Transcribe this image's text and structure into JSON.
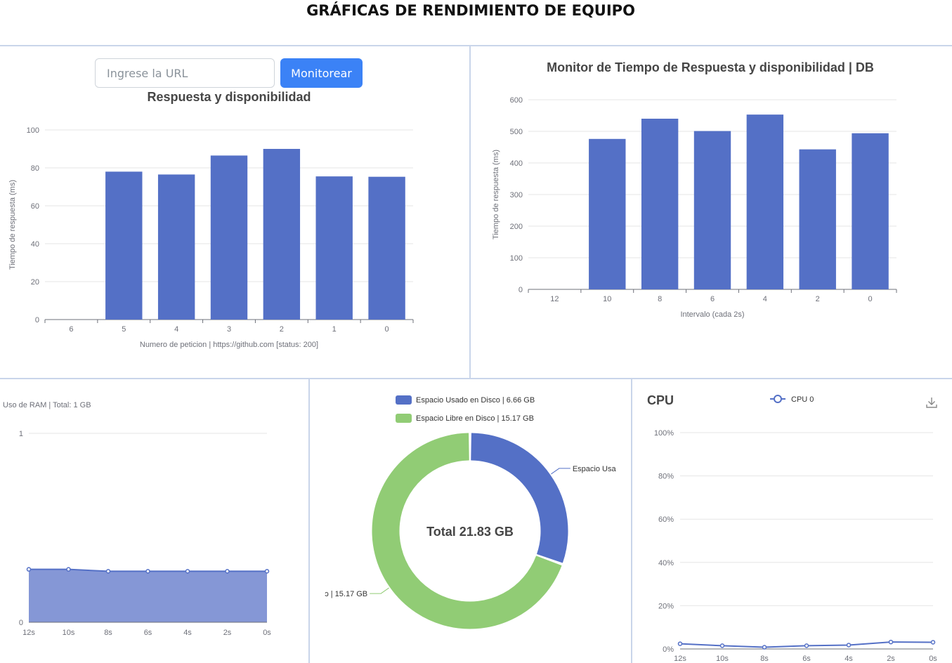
{
  "page": {
    "title": "GRÁFICAS DE RENDIMIENTO DE EQUIPO"
  },
  "monitor": {
    "url_placeholder": "Ingrese la URL",
    "url_value": "",
    "button_label": "Monitorear"
  },
  "colors": {
    "bar": "#5470c6",
    "green": "#91cc75",
    "button": "#3b82f6"
  },
  "response_chart": {
    "chart_data": {
      "type": "bar",
      "title": "Respuesta y disponibilidad",
      "xlabel": "Numero de peticion | https://github.com [status: 200]",
      "ylabel": "Tiempo de respuesta (ms)",
      "categories": [
        "6",
        "5",
        "4",
        "3",
        "2",
        "1",
        "0"
      ],
      "values": [
        null,
        78,
        76.5,
        86.5,
        90,
        75.5,
        75.3
      ],
      "ylim": [
        0,
        100
      ],
      "yticks": [
        "0",
        "20",
        "40",
        "60",
        "80",
        "100"
      ],
      "grid": true
    }
  },
  "db_chart": {
    "chart_data": {
      "type": "bar",
      "title": "Monitor de Tiempo de Respuesta y disponibilidad | DB",
      "xlabel": "Intervalo (cada 2s)",
      "ylabel": "Tiempo de respuesta (ms)",
      "categories": [
        "12",
        "10",
        "8",
        "6",
        "4",
        "2",
        "0"
      ],
      "values": [
        null,
        476,
        540,
        501,
        553,
        443,
        494
      ],
      "ylim": [
        0,
        600
      ],
      "yticks": [
        "0",
        "100",
        "200",
        "300",
        "400",
        "500",
        "600"
      ],
      "grid": true
    }
  },
  "ram_chart": {
    "chart_data": {
      "type": "area",
      "title": "Uso de RAM | Total: 1 GB",
      "categories": [
        "12s",
        "10s",
        "8s",
        "6s",
        "4s",
        "2s",
        "0s"
      ],
      "values": [
        0.28,
        0.28,
        0.27,
        0.27,
        0.27,
        0.27,
        0.27
      ],
      "ylim": [
        0,
        1
      ],
      "yticks": [
        "0",
        "1"
      ],
      "grid": true
    }
  },
  "disk_chart": {
    "chart_data": {
      "type": "pie",
      "center_label": "Total 21.83 GB",
      "slices": [
        {
          "name": "Espacio Usado en Disco | 6.66 GB",
          "value": 6.66,
          "color": "#5470c6",
          "outer_label": "Espacio Usa"
        },
        {
          "name": "Espacio Libre en Disco | 15.17 GB",
          "value": 15.17,
          "color": "#91cc75",
          "outer_label": "ɔ | 15.17 GB"
        }
      ],
      "legend_placement": "top"
    }
  },
  "cpu_chart": {
    "chart_data": {
      "type": "line",
      "title": "CPU",
      "categories": [
        "12s",
        "10s",
        "8s",
        "6s",
        "4s",
        "2s",
        "0s"
      ],
      "series": [
        {
          "name": "CPU 0",
          "values": [
            2.4,
            1.5,
            0.8,
            1.5,
            1.8,
            3.2,
            3.1
          ]
        }
      ],
      "ylim": [
        0,
        100
      ],
      "yticks": [
        "0%",
        "20%",
        "40%",
        "60%",
        "80%",
        "100%"
      ],
      "legend_placement": "top",
      "grid": true
    }
  },
  "icons": {
    "download": "download-icon",
    "legend_marker": "circle-line-marker"
  }
}
